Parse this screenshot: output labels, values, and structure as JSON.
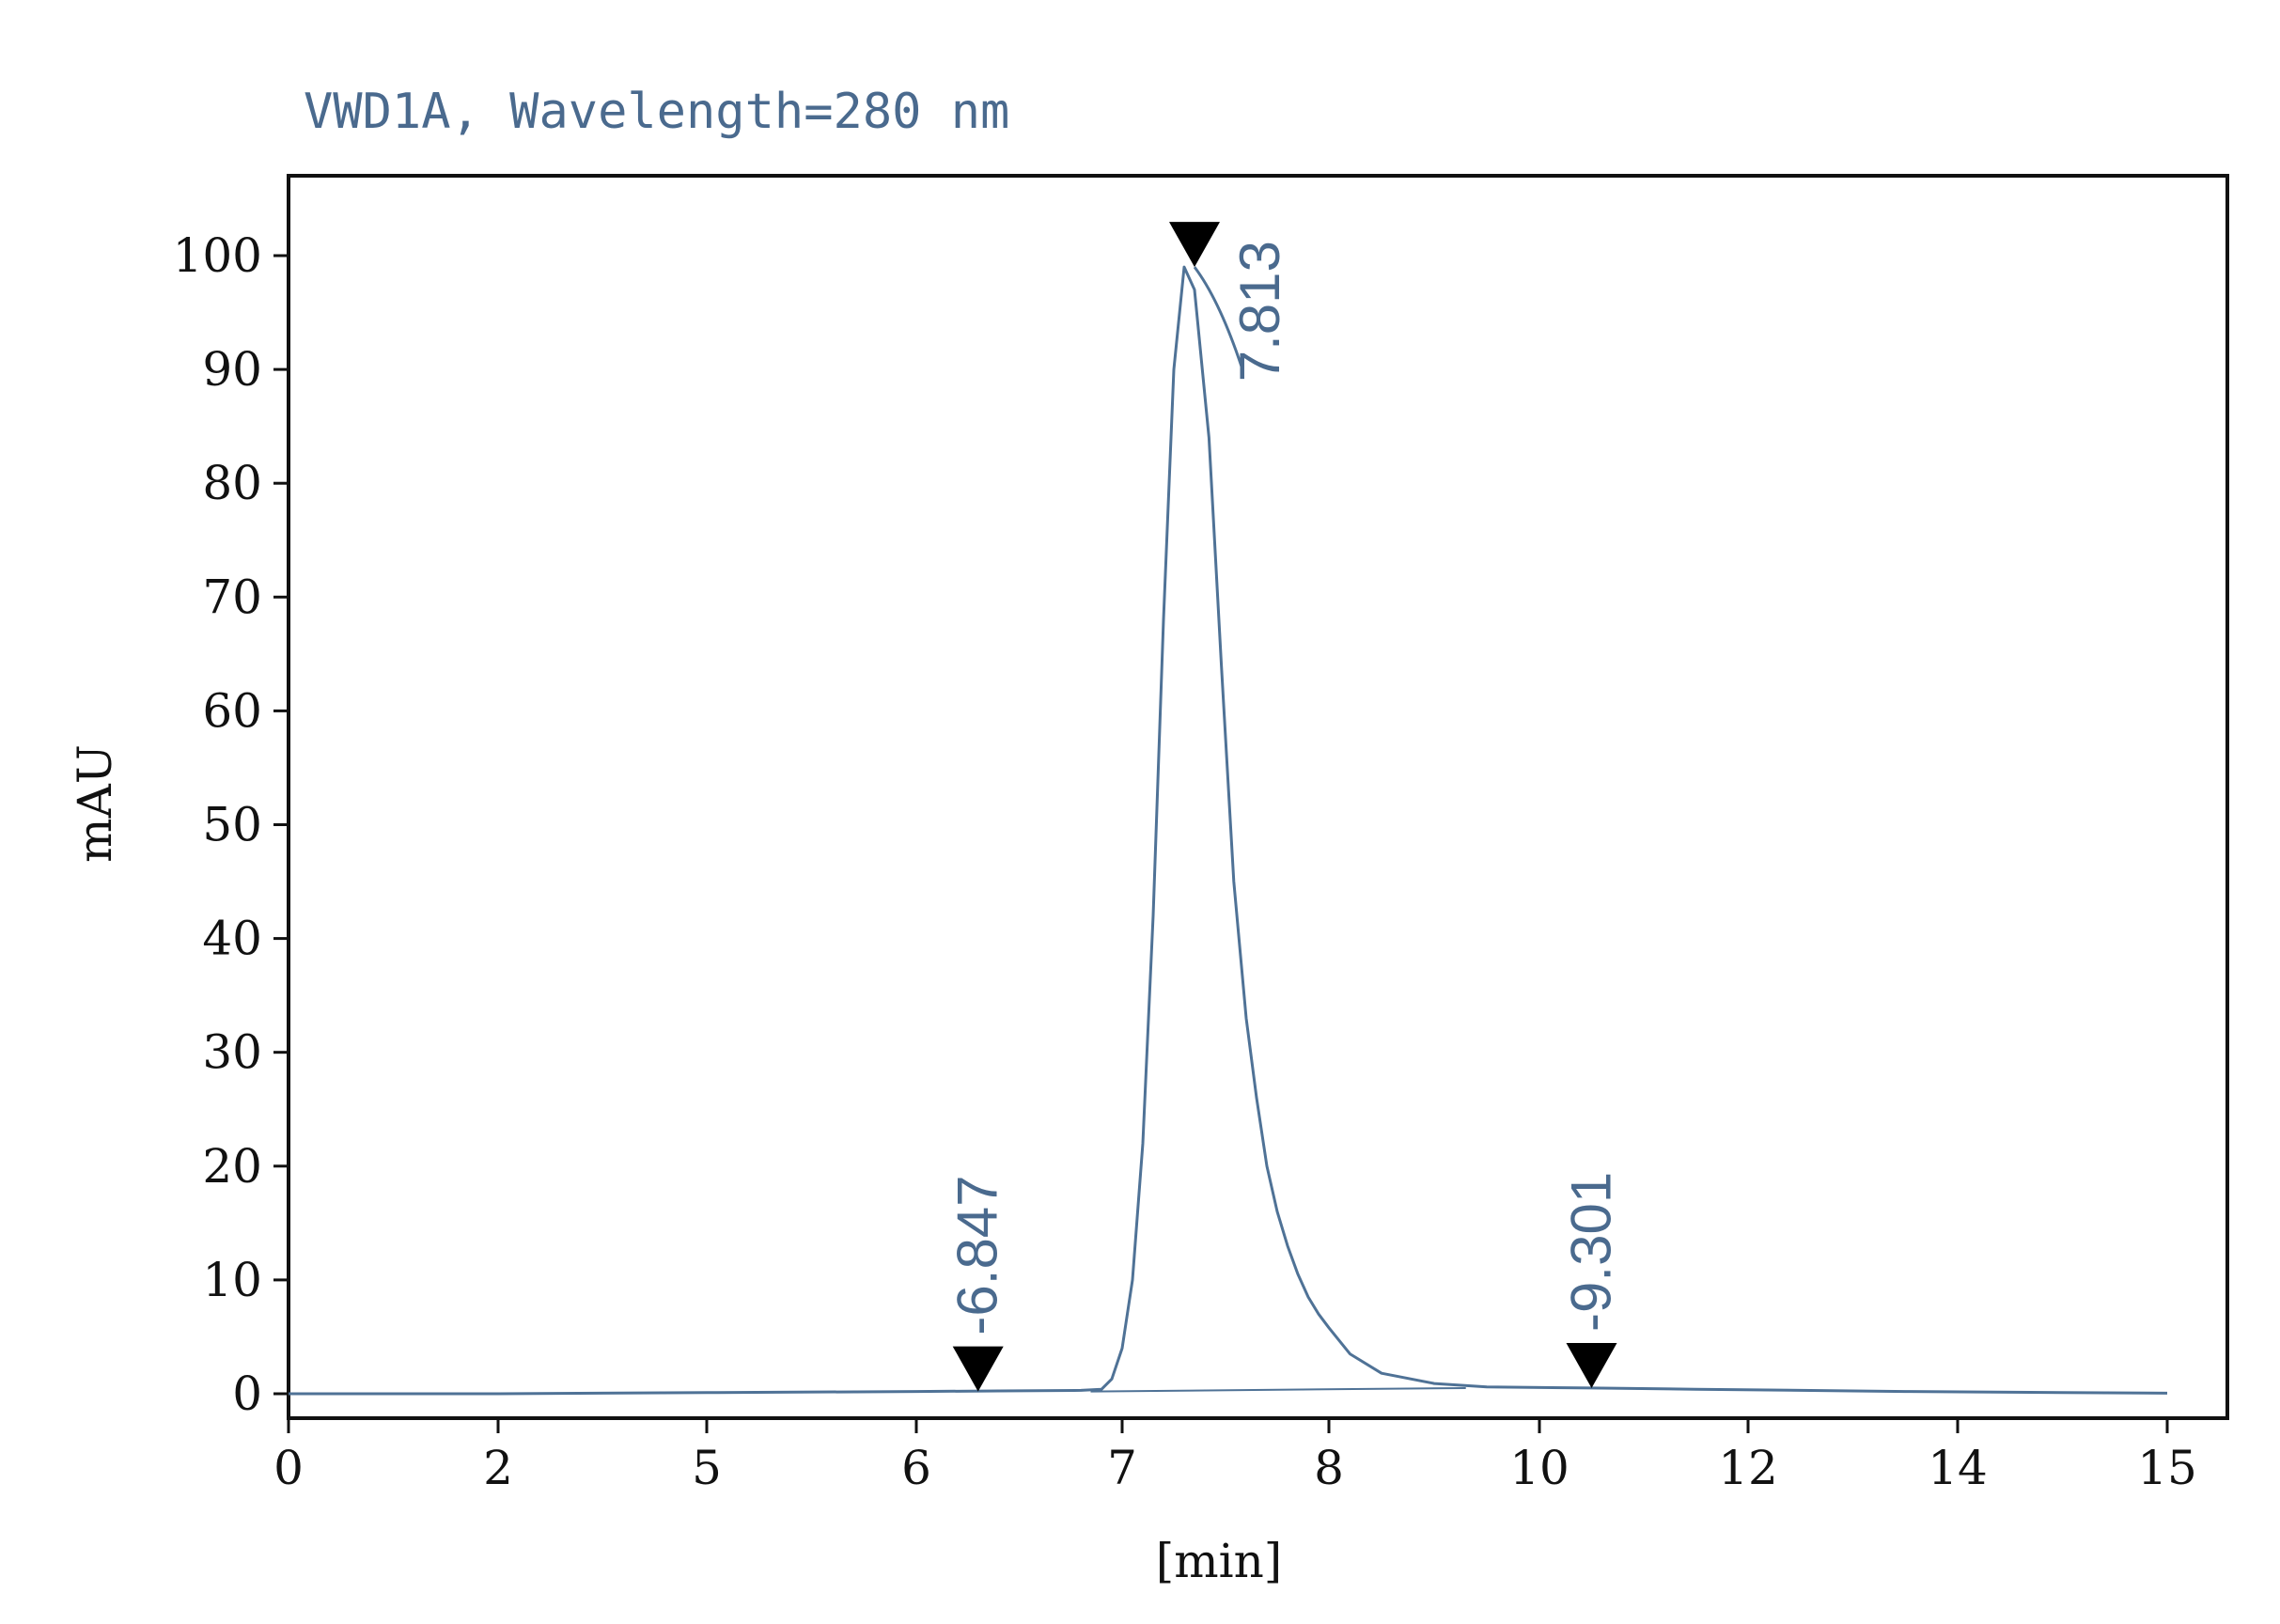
{
  "chart_data": {
    "type": "line",
    "title": "VWD1A, Wavelength=280 nm",
    "xlabel": "[min]",
    "ylabel": "mAU",
    "xlim": [
      0,
      15
    ],
    "ylim": [
      -2,
      107
    ],
    "x_ticks": [
      "0",
      "2",
      "5",
      "6",
      "7",
      "8",
      "10",
      "12",
      "14",
      "15"
    ],
    "y_ticks": [
      0,
      10,
      20,
      30,
      40,
      50,
      60,
      70,
      80,
      90,
      100
    ],
    "grid": false,
    "legend": "none",
    "series": [
      {
        "x": [
          0,
          2,
          5,
          6.0,
          6.4,
          6.8,
          6.9,
          6.95,
          7.0,
          7.05,
          7.1,
          7.15,
          7.2,
          7.25,
          7.3,
          7.35,
          7.42,
          7.48,
          7.54,
          7.6,
          7.65,
          7.7,
          7.75,
          7.8,
          7.85,
          7.9,
          7.95,
          8.0,
          8.2,
          8.5,
          9.0,
          9.5,
          10.5,
          11.5,
          12.5,
          13.5,
          14.5,
          15.0
        ],
        "y": [
          0,
          0.0,
          0.1,
          0.2,
          0.25,
          0.3,
          0.4,
          1.3,
          4,
          10,
          22,
          42,
          68,
          90,
          99,
          97,
          84,
          64,
          45,
          33,
          26,
          20,
          16,
          13,
          10.5,
          8.5,
          7,
          5.8,
          3.5,
          1.8,
          0.9,
          0.6,
          0.5,
          0.4,
          0.3,
          0.2,
          0.1,
          0.05
        ]
      }
    ],
    "baseline": {
      "x": [
        6.847,
        9.301
      ],
      "y": [
        0.2,
        0.5
      ]
    },
    "peaks": [
      {
        "label": "-6.847",
        "x": 6.3,
        "y": 0.2
      },
      {
        "label": "7.813",
        "x": 7.35,
        "y": 99
      },
      {
        "label": "-9.301",
        "x": 10.5,
        "y": 0.5
      }
    ],
    "colors": {
      "trace": "#4f7296",
      "text": "#4a6a8e",
      "axis": "#111111",
      "marker": "#000000"
    }
  }
}
